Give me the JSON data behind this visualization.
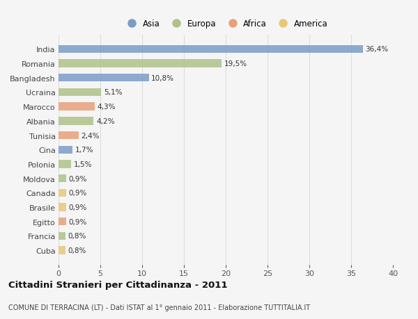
{
  "categories": [
    "India",
    "Romania",
    "Bangladesh",
    "Ucraina",
    "Marocco",
    "Albania",
    "Tunisia",
    "Cina",
    "Polonia",
    "Moldova",
    "Canada",
    "Brasile",
    "Egitto",
    "Francia",
    "Cuba"
  ],
  "values": [
    36.4,
    19.5,
    10.8,
    5.1,
    4.3,
    4.2,
    2.4,
    1.7,
    1.5,
    0.9,
    0.9,
    0.9,
    0.9,
    0.8,
    0.8
  ],
  "labels": [
    "36,4%",
    "19,5%",
    "10,8%",
    "5,1%",
    "4,3%",
    "4,2%",
    "2,4%",
    "1,7%",
    "1,5%",
    "0,9%",
    "0,9%",
    "0,9%",
    "0,9%",
    "0,8%",
    "0,8%"
  ],
  "colors": [
    "#7b9cc8",
    "#b0c28a",
    "#7b9cc8",
    "#b0c28a",
    "#e8a07a",
    "#b0c28a",
    "#e8a07a",
    "#7b9cc8",
    "#b0c28a",
    "#b0c28a",
    "#e8c87a",
    "#e8c87a",
    "#e8a07a",
    "#b0c28a",
    "#e8c87a"
  ],
  "legend_labels": [
    "Asia",
    "Europa",
    "Africa",
    "America"
  ],
  "legend_colors": [
    "#7b9cc8",
    "#b0c28a",
    "#e8a07a",
    "#e8c87a"
  ],
  "title": "Cittadini Stranieri per Cittadinanza - 2011",
  "subtitle": "COMUNE DI TERRACINA (LT) - Dati ISTAT al 1° gennaio 2011 - Elaborazione TUTTITALIA.IT",
  "xlim": [
    0,
    40
  ],
  "xticks": [
    0,
    5,
    10,
    15,
    20,
    25,
    30,
    35,
    40
  ],
  "bg_color": "#f5f5f5",
  "grid_color": "#dddddd",
  "bar_height": 0.55
}
